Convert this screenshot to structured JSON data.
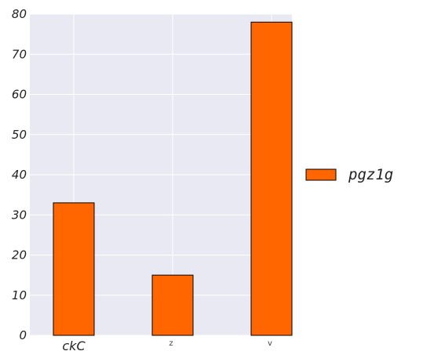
{
  "chart_data": {
    "type": "bar",
    "categories": [
      "ckC",
      "z",
      "v"
    ],
    "series": [
      {
        "name": "pgz1g",
        "values": [
          33,
          15,
          78
        ]
      }
    ],
    "ylim": [
      0,
      80
    ],
    "yticks": [
      0,
      10,
      20,
      30,
      40,
      50,
      60,
      70,
      80
    ],
    "grid": true,
    "legend_position": "right",
    "colors": {
      "bar": "#ff6600",
      "bar_edge": "#000000",
      "plot_background": "#e8e9f2",
      "grid": "#ffffff"
    }
  }
}
